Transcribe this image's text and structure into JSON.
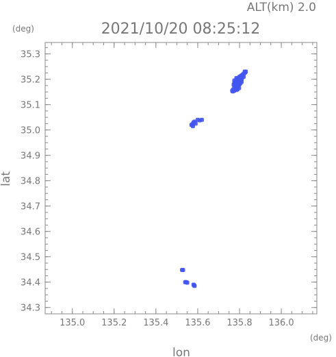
{
  "header": {
    "altitude_label": "ALT(km) 2.0",
    "timestamp": "2021/10/20 08:25:12"
  },
  "chart_data": {
    "type": "scatter",
    "title": "2021/10/20 08:25:12",
    "subtitle": "ALT(km) 2.0",
    "xlabel": "lon",
    "ylabel": "lat",
    "x_unit": "(deg)",
    "y_unit": "(deg)",
    "xlim": [
      134.87,
      136.17
    ],
    "ylim": [
      34.275,
      35.345
    ],
    "x_ticks": [
      "135.0",
      "135.2",
      "135.4",
      "135.6",
      "135.8",
      "136.0"
    ],
    "y_ticks": [
      "34.3",
      "34.4",
      "34.5",
      "34.6",
      "34.7",
      "34.8",
      "34.9",
      "35.0",
      "35.1",
      "35.2",
      "35.3"
    ],
    "grid": false,
    "marker_color": "#4455ee",
    "series": [
      {
        "points": [
          [
            135.83,
            35.23
          ],
          [
            135.825,
            35.225
          ],
          [
            135.82,
            35.222
          ],
          [
            135.815,
            35.218
          ],
          [
            135.81,
            35.215
          ],
          [
            135.805,
            35.212
          ],
          [
            135.8,
            35.21
          ],
          [
            135.795,
            35.205
          ],
          [
            135.79,
            35.2
          ],
          [
            135.785,
            35.198
          ],
          [
            135.782,
            35.192
          ],
          [
            135.778,
            35.188
          ],
          [
            135.775,
            35.185
          ],
          [
            135.772,
            35.178
          ],
          [
            135.775,
            35.172
          ],
          [
            135.78,
            35.168
          ],
          [
            135.785,
            35.165
          ],
          [
            135.79,
            35.17
          ],
          [
            135.795,
            35.175
          ],
          [
            135.8,
            35.18
          ],
          [
            135.805,
            35.185
          ],
          [
            135.81,
            35.19
          ],
          [
            135.808,
            35.2
          ],
          [
            135.812,
            35.205
          ],
          [
            135.8,
            35.195
          ],
          [
            135.795,
            35.19
          ],
          [
            135.79,
            35.185
          ],
          [
            135.785,
            35.18
          ],
          [
            135.78,
            35.175
          ],
          [
            135.798,
            35.165
          ],
          [
            135.79,
            35.16
          ],
          [
            135.785,
            35.158
          ],
          [
            135.775,
            35.155
          ],
          [
            135.768,
            35.152
          ],
          [
            135.765,
            35.155
          ],
          [
            135.77,
            35.16
          ],
          [
            135.775,
            35.195
          ],
          [
            135.785,
            35.205
          ],
          [
            135.8,
            35.2
          ],
          [
            135.81,
            35.2
          ],
          [
            135.82,
            35.21
          ],
          [
            135.825,
            35.23
          ],
          [
            135.828,
            35.228
          ],
          [
            135.57,
            35.02
          ],
          [
            135.575,
            35.022
          ],
          [
            135.578,
            35.025
          ],
          [
            135.58,
            35.03
          ],
          [
            135.585,
            35.033
          ],
          [
            135.59,
            35.025
          ],
          [
            135.6,
            35.04
          ],
          [
            135.61,
            35.038
          ],
          [
            135.62,
            35.04
          ],
          [
            135.577,
            35.015
          ],
          [
            135.525,
            34.448
          ],
          [
            135.53,
            34.448
          ],
          [
            135.54,
            34.4
          ],
          [
            135.545,
            34.4
          ],
          [
            135.55,
            34.398
          ],
          [
            135.58,
            34.39
          ],
          [
            135.585,
            34.385
          ],
          [
            135.582,
            34.388
          ]
        ]
      }
    ]
  }
}
